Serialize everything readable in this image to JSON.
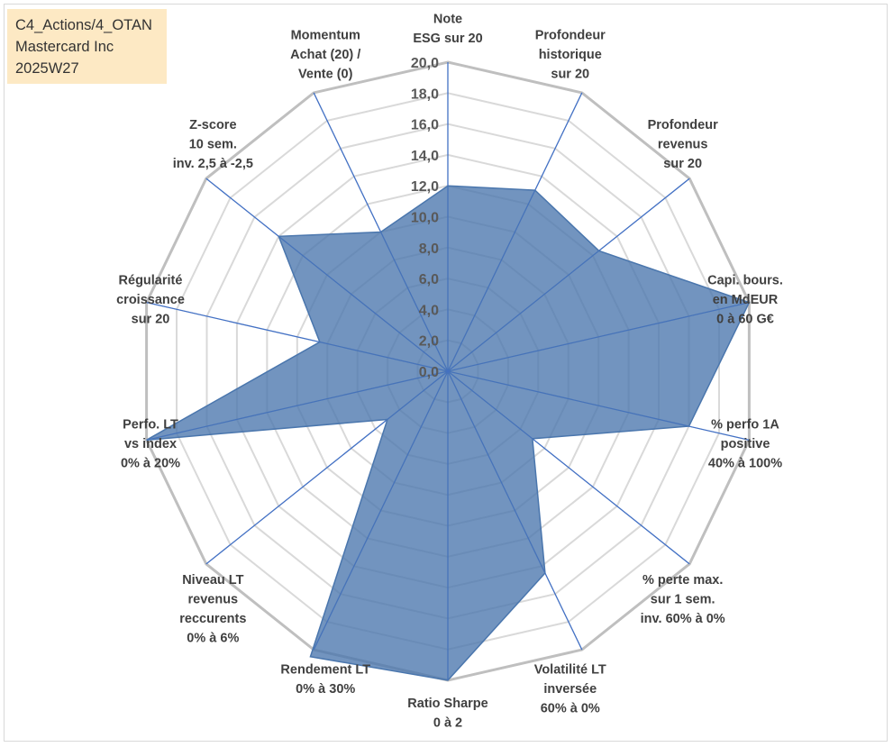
{
  "info_box": {
    "line1": "C4_Actions/4_OTAN",
    "line2": "Mastercard Inc",
    "line3": "2025W27"
  },
  "colors": {
    "grid_major": "#bfbfbf",
    "grid_minor": "#d9d9d9",
    "axis_line": "#4472c4",
    "fill": "#4a76ad",
    "info_bg": "#fde9c4"
  },
  "chart_data": {
    "type": "radar",
    "title": "",
    "rmin": 0,
    "rmax": 20,
    "tick_step": 2,
    "tick_labels": [
      "0,0",
      "2,0",
      "4,0",
      "6,0",
      "8,0",
      "10,0",
      "12,0",
      "14,0",
      "16,0",
      "18,0",
      "20,0"
    ],
    "categories": [
      [
        "Note",
        "ESG sur 20"
      ],
      [
        "Profondeur",
        "historique",
        "sur 20"
      ],
      [
        "Profondeur",
        "revenus",
        "sur 20"
      ],
      [
        "Capi. bours.",
        "en MdEUR",
        "0 à 60 G€"
      ],
      [
        "% perfo 1A",
        "positive",
        "40% à 100%"
      ],
      [
        "% perte max.",
        "sur 1 sem.",
        "inv. 60% à 0%"
      ],
      [
        "Volatilité LT",
        "inversée",
        "60% à 0%"
      ],
      [
        "Ratio Sharpe",
        "0 à 2"
      ],
      [
        "Rendement LT",
        "0% à 30%"
      ],
      [
        "Niveau LT",
        "revenus",
        "reccurents",
        "0% à 6%"
      ],
      [
        "Perfo. LT",
        "vs index",
        "0% à 20%"
      ],
      [
        "Régularité",
        "croissance",
        "sur 20"
      ],
      [
        "Z-score",
        "10 sem.",
        "inv. 2,5 à -2,5"
      ],
      [
        "Momentum",
        "Achat (20) /",
        "Vente (0)"
      ]
    ],
    "series": [
      {
        "values": [
          12,
          13,
          12.5,
          20,
          16,
          7,
          14.5,
          20,
          20.5,
          5,
          20,
          8.5,
          14,
          10
        ]
      }
    ]
  }
}
